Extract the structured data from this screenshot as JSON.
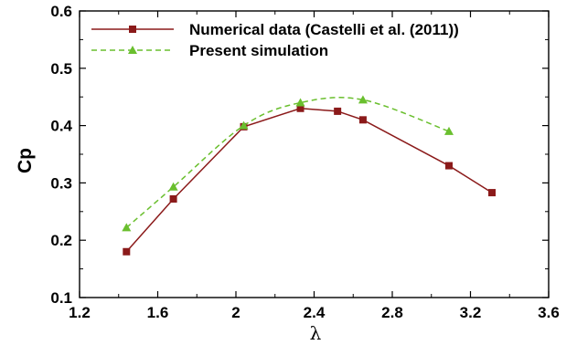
{
  "chart_data": {
    "type": "line",
    "title": "",
    "xlabel": "λ",
    "ylabel": "Cp",
    "xlim": [
      1.2,
      3.6
    ],
    "ylim": [
      0.1,
      0.6
    ],
    "xticks": [
      "1.2",
      "1.6",
      "2",
      "2.4",
      "2.8",
      "3.2",
      "3.6"
    ],
    "yticks": [
      "0.1",
      "0.2",
      "0.3",
      "0.4",
      "0.5",
      "0.6"
    ],
    "grid": false,
    "legend_position": "top-left",
    "series": [
      {
        "name": "Numerical data (Castelli et al. (2011))",
        "color": "#8b1a1a",
        "line_style": "solid",
        "marker": "square",
        "smooth": false,
        "x": [
          1.44,
          1.68,
          2.04,
          2.33,
          2.52,
          2.65,
          3.09,
          3.31
        ],
        "y": [
          0.18,
          0.272,
          0.398,
          0.43,
          0.425,
          0.41,
          0.33,
          0.283
        ]
      },
      {
        "name": "Present simulation",
        "color": "#6abf2e",
        "line_style": "dashed",
        "marker": "triangle",
        "smooth": true,
        "x": [
          1.44,
          1.68,
          2.04,
          2.33,
          2.65,
          3.09
        ],
        "y": [
          0.222,
          0.293,
          0.4,
          0.44,
          0.445,
          0.39
        ]
      }
    ]
  }
}
